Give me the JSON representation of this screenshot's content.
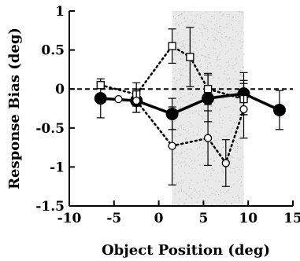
{
  "chart_data": {
    "type": "line",
    "title": "",
    "xlabel": "Object Position (deg)",
    "ylabel": "Response Bias (deg)",
    "xlim": [
      -10,
      15
    ],
    "ylim": [
      -1.5,
      1
    ],
    "xticks": [
      -10,
      -5,
      0,
      5,
      10,
      15
    ],
    "yticks": [
      -1.5,
      -1,
      -0.5,
      0,
      0.5,
      1
    ],
    "xtick_labels": [
      "-10",
      "-5",
      "0",
      "5",
      "10",
      "15"
    ],
    "ytick_labels": [
      "-1.5",
      "-1",
      "-0.5",
      "0",
      "0.5",
      "1"
    ],
    "grid": false,
    "reference_line_y": 0,
    "shaded_band_x": [
      1.5,
      9.5
    ],
    "series": [
      {
        "marker": "filled-circle",
        "line": "solid",
        "x": [
          -6.5,
          -2.5,
          1.5,
          5.5,
          9.5,
          13.5
        ],
        "y": [
          -0.12,
          -0.15,
          -0.32,
          -0.12,
          -0.06,
          -0.27
        ],
        "err": [
          0.25,
          0.15,
          0.2,
          0.3,
          0.27,
          0.25
        ]
      },
      {
        "marker": "open-square",
        "line": "dotted",
        "x": [
          -6.5,
          -2.5,
          1.5,
          3.5,
          5.5,
          9.5
        ],
        "y": [
          0.05,
          -0.07,
          0.55,
          0.41,
          0.0,
          -0.13
        ],
        "err": [
          0.0,
          0.15,
          0.22,
          0.38,
          0.2,
          0.2
        ]
      },
      {
        "marker": "open-circle",
        "line": "dotted",
        "x": [
          -4.5,
          -2.5,
          1.5,
          5.5,
          7.5,
          9.5
        ],
        "y": [
          -0.13,
          -0.15,
          -0.73,
          -0.63,
          -0.95,
          -0.26
        ],
        "err": [
          0.0,
          0.15,
          0.5,
          0.35,
          0.3,
          0.37
        ]
      }
    ]
  }
}
